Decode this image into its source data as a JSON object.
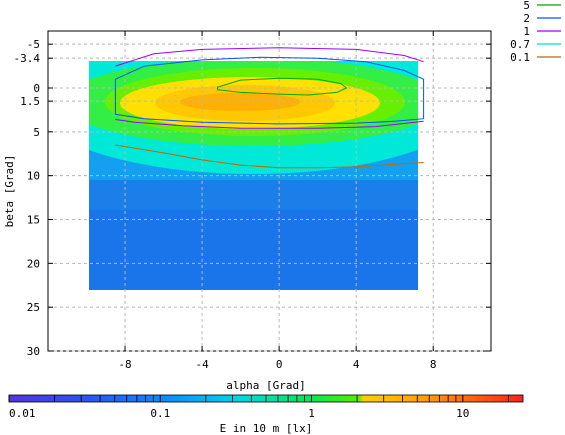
{
  "chart_data": {
    "type": "heatmap",
    "xlabel": "alpha [Grad]",
    "ylabel": "beta [Grad]",
    "xlim": [
      -12,
      11
    ],
    "ylim": [
      -6.5,
      30
    ],
    "y_reversed": true,
    "grid": true,
    "x_ticks": [
      -8,
      -4,
      0,
      4,
      8
    ],
    "y_ticks": [
      -5,
      -3.4,
      0,
      1.5,
      5,
      10,
      15,
      20,
      25,
      30
    ],
    "x_tick_labels": [
      "-8",
      "-4",
      "0",
      "4",
      "8"
    ],
    "y_tick_labels": [
      "-5",
      "-3.4",
      "0",
      "1.5",
      "5",
      "10",
      "15",
      "20",
      "25",
      "30"
    ],
    "data_extent": {
      "alpha": [
        -8.5,
        7.5
      ],
      "beta": [
        -5,
        22.5
      ]
    },
    "contours": [
      {
        "level": "5",
        "color": "#00aa00",
        "points": [
          [
            -3.2,
            -0.1
          ],
          [
            -2,
            -0.9
          ],
          [
            0,
            -1.1
          ],
          [
            2,
            -1
          ],
          [
            3.2,
            -0.5
          ],
          [
            3.5,
            0
          ],
          [
            3,
            0.5
          ],
          [
            1.5,
            0.8
          ],
          [
            0,
            0.7
          ],
          [
            -2,
            0.5
          ],
          [
            -3.2,
            0.2
          ],
          [
            -3.2,
            -0.1
          ]
        ]
      },
      {
        "level": "2",
        "color": "#0055ff",
        "points": [
          [
            -8.5,
            -1
          ],
          [
            -7,
            -2.5
          ],
          [
            -4,
            -3.2
          ],
          [
            -1,
            -3.5
          ],
          [
            2,
            -3.4
          ],
          [
            4.5,
            -3
          ],
          [
            6.5,
            -2
          ],
          [
            7.5,
            -1
          ],
          [
            7.5,
            3.5
          ],
          [
            6,
            3.8
          ],
          [
            4,
            4
          ],
          [
            0,
            4.1
          ],
          [
            -4,
            3.9
          ],
          [
            -7,
            3.5
          ],
          [
            -8.5,
            3
          ],
          [
            -8.5,
            -1
          ]
        ]
      },
      {
        "level": "1",
        "color": "#9900ff",
        "points": [
          [
            -8.5,
            -2.5
          ],
          [
            -6.5,
            -3.9
          ],
          [
            -4,
            -4.4
          ],
          [
            0,
            -4.6
          ],
          [
            4,
            -4.4
          ],
          [
            6.5,
            -3.7
          ],
          [
            7.5,
            -3
          ]
        ]
      },
      {
        "level": "1",
        "color": "#9900ff",
        "points": [
          [
            7.5,
            3.8
          ],
          [
            5,
            4.4
          ],
          [
            2,
            4.6
          ],
          [
            -2,
            4.6
          ],
          [
            -5,
            4.3
          ],
          [
            -7.5,
            3.9
          ],
          [
            -8.5,
            3.6
          ]
        ]
      },
      {
        "level": "0.1",
        "color": "#c86400",
        "points": [
          [
            -8.5,
            6.5
          ],
          [
            -6,
            7.4
          ],
          [
            -4,
            8.2
          ],
          [
            -2,
            8.8
          ],
          [
            0,
            9.1
          ],
          [
            2,
            9.1
          ],
          [
            4,
            9
          ],
          [
            6,
            8.7
          ],
          [
            7.5,
            8.5
          ]
        ]
      }
    ],
    "legend": {
      "placement": "top-right",
      "entries": [
        {
          "label": "5",
          "color": "#00aa00"
        },
        {
          "label": "2",
          "color": "#0055ff"
        },
        {
          "label": "1",
          "color": "#9900ff"
        },
        {
          "label": "0.7",
          "color": "#00dddd"
        },
        {
          "label": "0.1",
          "color": "#c86400"
        }
      ]
    },
    "colorbar": {
      "scale": "log",
      "min": 0.01,
      "max": 25,
      "tick_values": [
        0.01,
        0.1,
        1,
        10
      ],
      "tick_labels": [
        "0.01",
        "0.1",
        "1",
        "10"
      ],
      "label": "E in 10 m [lx]",
      "colors": [
        "#5533dd",
        "#2288ff",
        "#00dddd",
        "#00ee44",
        "#ffcc00",
        "#ff6600",
        "#ff2222"
      ]
    }
  }
}
